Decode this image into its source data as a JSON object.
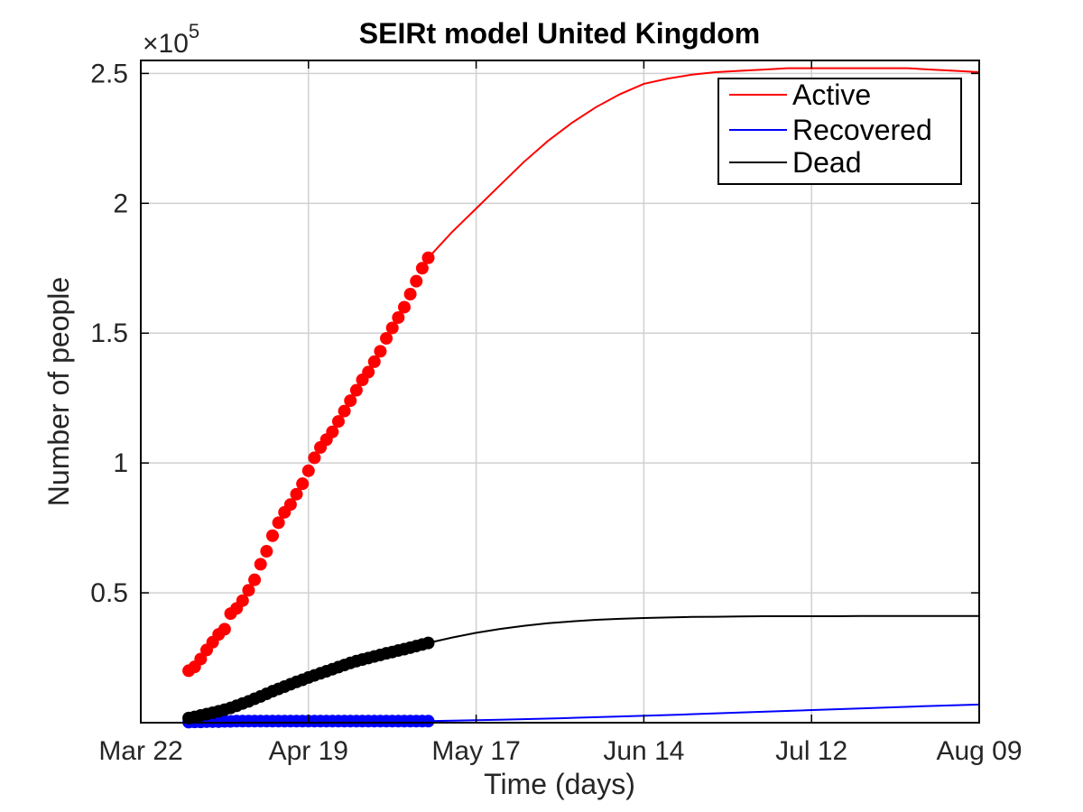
{
  "chart_data": {
    "type": "line",
    "title": "SEIRt model United Kingdom",
    "xlabel": "Time (days)",
    "ylabel": "Number of people",
    "y_exponent_label": "×10",
    "y_exponent_power": "5",
    "x_start_date": "2020-03-22",
    "xlim": [
      0,
      140
    ],
    "ylim": [
      0,
      2.55
    ],
    "x_ticks": [
      0,
      28,
      56,
      84,
      112,
      140
    ],
    "x_tick_labels": [
      "Mar 22",
      "Apr 19",
      "May 17",
      "Jun 14",
      "Jul 12",
      "Aug 09"
    ],
    "y_ticks": [
      0.5,
      1,
      1.5,
      2,
      2.5
    ],
    "y_tick_labels": [
      "0.5",
      "1",
      "1.5",
      "2",
      "2.5"
    ],
    "grid": true,
    "legend_position": "top-right",
    "colors": {
      "active": "#ff0000",
      "recovered": "#0000ff",
      "dead": "#000000"
    },
    "observed_days": [
      8,
      9,
      10,
      11,
      12,
      13,
      14,
      15,
      16,
      17,
      18,
      19,
      20,
      21,
      22,
      23,
      24,
      25,
      26,
      27,
      28,
      29,
      30,
      31,
      32,
      33,
      34,
      35,
      36,
      37,
      38,
      39,
      40,
      41,
      42,
      43,
      44,
      45,
      46,
      47,
      48
    ],
    "series": [
      {
        "name": "Active",
        "color": "#ff0000",
        "observed": [
          0.2,
          0.215,
          0.245,
          0.28,
          0.31,
          0.34,
          0.36,
          0.42,
          0.44,
          0.47,
          0.51,
          0.55,
          0.61,
          0.66,
          0.72,
          0.77,
          0.81,
          0.84,
          0.88,
          0.92,
          0.97,
          1.02,
          1.06,
          1.09,
          1.12,
          1.16,
          1.2,
          1.24,
          1.28,
          1.32,
          1.35,
          1.39,
          1.43,
          1.48,
          1.52,
          1.56,
          1.6,
          1.65,
          1.7,
          1.75,
          1.79
        ],
        "model": {
          "x": [
            48,
            52,
            56,
            60,
            64,
            68,
            72,
            76,
            80,
            84,
            88,
            92,
            96,
            100,
            104,
            108,
            112,
            116,
            120,
            124,
            128,
            132,
            136,
            140
          ],
          "y": [
            1.79,
            1.89,
            1.98,
            2.07,
            2.16,
            2.24,
            2.31,
            2.37,
            2.42,
            2.46,
            2.48,
            2.495,
            2.505,
            2.51,
            2.515,
            2.52,
            2.52,
            2.52,
            2.52,
            2.52,
            2.52,
            2.515,
            2.51,
            2.505
          ]
        }
      },
      {
        "name": "Recovered",
        "color": "#0000ff",
        "observed": [
          0.002,
          0.003,
          0.003,
          0.004,
          0.004,
          0.004,
          0.005,
          0.005,
          0.006,
          0.006,
          0.006,
          0.006,
          0.006,
          0.006,
          0.006,
          0.006,
          0.006,
          0.006,
          0.006,
          0.006,
          0.006,
          0.006,
          0.006,
          0.006,
          0.006,
          0.006,
          0.006,
          0.006,
          0.006,
          0.006,
          0.006,
          0.006,
          0.006,
          0.006,
          0.006,
          0.006,
          0.006,
          0.006,
          0.006,
          0.006,
          0.006
        ],
        "model": {
          "x": [
            48,
            60,
            70,
            80,
            90,
            100,
            110,
            120,
            130,
            140
          ],
          "y": [
            0.006,
            0.011,
            0.017,
            0.024,
            0.031,
            0.039,
            0.047,
            0.055,
            0.063,
            0.07
          ]
        }
      },
      {
        "name": "Dead",
        "color": "#000000",
        "observed": [
          0.018,
          0.022,
          0.028,
          0.033,
          0.038,
          0.044,
          0.05,
          0.057,
          0.065,
          0.074,
          0.082,
          0.092,
          0.101,
          0.111,
          0.121,
          0.13,
          0.139,
          0.148,
          0.157,
          0.165,
          0.174,
          0.182,
          0.19,
          0.198,
          0.206,
          0.214,
          0.222,
          0.23,
          0.237,
          0.243,
          0.249,
          0.255,
          0.261,
          0.267,
          0.272,
          0.278,
          0.283,
          0.289,
          0.295,
          0.301,
          0.307
        ],
        "model": {
          "x": [
            48,
            52,
            56,
            60,
            64,
            68,
            72,
            76,
            80,
            84,
            88,
            92,
            96,
            100,
            104,
            108,
            112,
            116,
            120,
            124,
            128,
            132,
            136,
            140
          ],
          "y": [
            0.307,
            0.328,
            0.346,
            0.361,
            0.373,
            0.383,
            0.39,
            0.396,
            0.4,
            0.403,
            0.405,
            0.407,
            0.408,
            0.409,
            0.41,
            0.41,
            0.41,
            0.41,
            0.411,
            0.411,
            0.411,
            0.411,
            0.411,
            0.411
          ]
        }
      }
    ]
  }
}
